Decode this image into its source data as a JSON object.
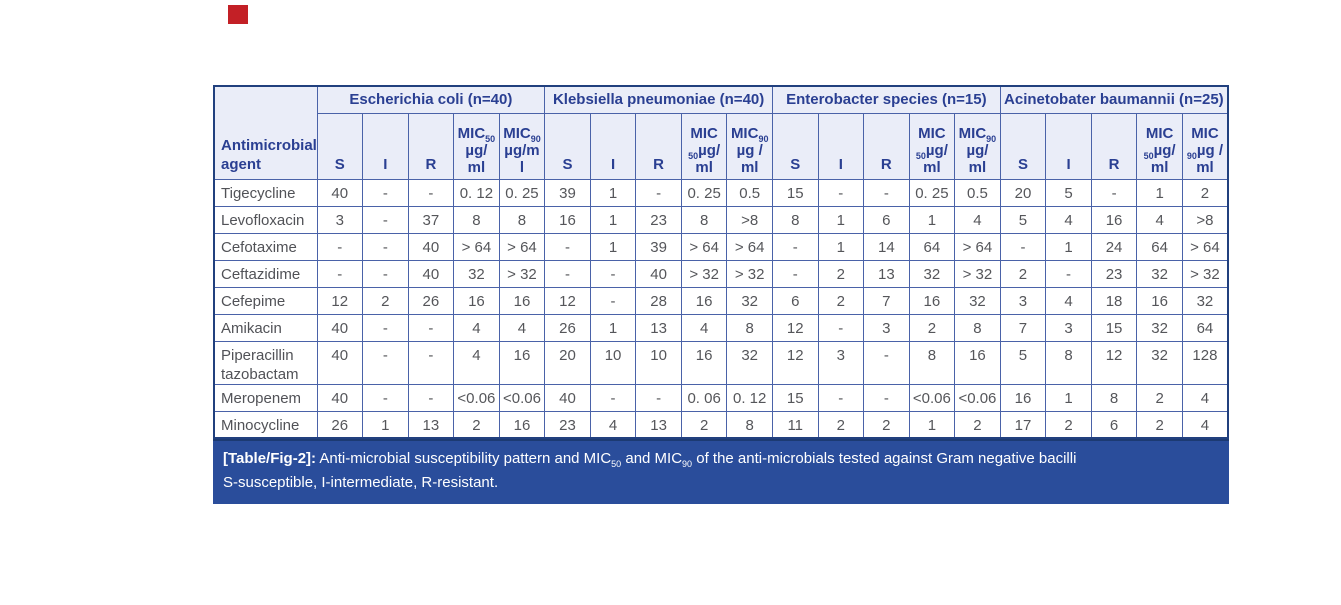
{
  "colors": {
    "red_marker": "#c32026",
    "caption_bg": "#2a4d9b",
    "header_bg": "#eaedf8",
    "header_text": "#2a3f92",
    "grid_line": "#4a62a8",
    "outer_border": "#21407e",
    "data_text": "#55565a",
    "caption_text": "#ffffff"
  },
  "table": {
    "agent_header": "Antimicrobial agent",
    "groups": [
      {
        "label": "Escherichia coli (n=40)",
        "columns": [
          {
            "type": "plain",
            "label": "S"
          },
          {
            "type": "plain",
            "label": "I"
          },
          {
            "type": "plain",
            "label": "R"
          },
          {
            "type": "mic",
            "lines": [
              [
                {
                  "t": "MIC"
                },
                {
                  "sub": "50"
                }
              ],
              [
                {
                  "t": "µg/"
                }
              ],
              [
                {
                  "t": "ml"
                }
              ]
            ]
          },
          {
            "type": "mic",
            "lines": [
              [
                {
                  "t": "MIC"
                },
                {
                  "sub": "90"
                }
              ],
              [
                {
                  "t": "µg/m"
                }
              ],
              [
                {
                  "t": "l"
                }
              ]
            ]
          }
        ]
      },
      {
        "label": "Klebsiella pneumoniae (n=40)",
        "columns": [
          {
            "type": "plain",
            "label": "S"
          },
          {
            "type": "plain",
            "label": "I"
          },
          {
            "type": "plain",
            "label": "R"
          },
          {
            "type": "mic",
            "lines": [
              [
                {
                  "t": "MIC"
                }
              ],
              [
                {
                  "sub": "50"
                },
                {
                  "t": "µg/"
                }
              ],
              [
                {
                  "t": "ml"
                }
              ]
            ]
          },
          {
            "type": "mic",
            "lines": [
              [
                {
                  "t": "MIC"
                },
                {
                  "sub": "90"
                }
              ],
              [
                {
                  "t": "µg /"
                }
              ],
              [
                {
                  "t": "ml"
                }
              ]
            ]
          }
        ]
      },
      {
        "label": "Enterobacter species (n=15)",
        "columns": [
          {
            "type": "plain",
            "label": "S"
          },
          {
            "type": "plain",
            "label": "I"
          },
          {
            "type": "plain",
            "label": "R"
          },
          {
            "type": "mic",
            "lines": [
              [
                {
                  "t": "MIC"
                }
              ],
              [
                {
                  "sub": "50"
                },
                {
                  "t": "µg/"
                }
              ],
              [
                {
                  "t": "ml"
                }
              ]
            ]
          },
          {
            "type": "mic",
            "lines": [
              [
                {
                  "t": "MIC"
                },
                {
                  "sub": "90"
                }
              ],
              [
                {
                  "t": "µg/"
                }
              ],
              [
                {
                  "t": "ml"
                }
              ]
            ]
          }
        ]
      },
      {
        "label": "Acinetobater baumannii (n=25)",
        "columns": [
          {
            "type": "plain",
            "label": "S"
          },
          {
            "type": "plain",
            "label": "I"
          },
          {
            "type": "plain",
            "label": "R"
          },
          {
            "type": "mic",
            "lines": [
              [
                {
                  "t": "MIC"
                }
              ],
              [
                {
                  "sub": "50"
                },
                {
                  "t": "µg/"
                }
              ],
              [
                {
                  "t": "ml"
                }
              ]
            ]
          },
          {
            "type": "mic",
            "lines": [
              [
                {
                  "t": "MIC"
                }
              ],
              [
                {
                  "sub": "90"
                },
                {
                  "t": "µg /"
                }
              ],
              [
                {
                  "t": "ml"
                }
              ]
            ]
          }
        ]
      }
    ],
    "rows": [
      {
        "agent": "Tigecycline",
        "values": [
          "40",
          "-",
          "-",
          "0. 12",
          "0. 25",
          "39",
          "1",
          "-",
          "0. 25",
          "0.5",
          "15",
          "-",
          "-",
          "0. 25",
          "0.5",
          "20",
          "5",
          "-",
          "1",
          "2"
        ]
      },
      {
        "agent": "Levofloxacin",
        "values": [
          "3",
          "-",
          "37",
          "8",
          "8",
          "16",
          "1",
          "23",
          "8",
          ">8",
          "8",
          "1",
          "6",
          "1",
          "4",
          "5",
          "4",
          "16",
          "4",
          ">8"
        ]
      },
      {
        "agent": "Cefotaxime",
        "values": [
          "-",
          "-",
          "40",
          "> 64",
          "> 64",
          "-",
          "1",
          "39",
          "> 64",
          "> 64",
          "-",
          "1",
          "14",
          "64",
          "> 64",
          "-",
          "1",
          "24",
          "64",
          "> 64"
        ]
      },
      {
        "agent": "Ceftazidime",
        "values": [
          "-",
          "-",
          "40",
          "32",
          "> 32",
          "-",
          "-",
          "40",
          "> 32",
          "> 32",
          "-",
          "2",
          "13",
          "32",
          "> 32",
          "2",
          "-",
          "23",
          "32",
          "> 32"
        ]
      },
      {
        "agent": "Cefepime",
        "values": [
          "12",
          "2",
          "26",
          "16",
          "16",
          "12",
          "-",
          "28",
          "16",
          "32",
          "6",
          "2",
          "7",
          "16",
          "32",
          "3",
          "4",
          "18",
          "16",
          "32"
        ]
      },
      {
        "agent": "Amikacin",
        "values": [
          "40",
          "-",
          "-",
          "4",
          "4",
          "26",
          "1",
          "13",
          "4",
          "8",
          "12",
          "-",
          "3",
          "2",
          "8",
          "7",
          "3",
          "15",
          "32",
          "64"
        ]
      },
      {
        "agent": "Piperacillin tazobactam",
        "values": [
          "40",
          "-",
          "-",
          "4",
          "16",
          "20",
          "10",
          "10",
          "16",
          "32",
          "12",
          "3",
          "-",
          "8",
          "16",
          "5",
          "8",
          "12",
          "32",
          "128"
        ]
      },
      {
        "agent": "Meropenem",
        "values": [
          "40",
          "-",
          "-",
          "<0.06",
          "<0.06",
          "40",
          "-",
          "-",
          "0. 06",
          "0. 12",
          "15",
          "-",
          "-",
          "<0.06",
          "<0.06",
          "16",
          "1",
          "8",
          "2",
          "4"
        ]
      },
      {
        "agent": "Minocycline",
        "values": [
          "26",
          "1",
          "13",
          "2",
          "16",
          "23",
          "4",
          "13",
          "2",
          "8",
          "11",
          "2",
          "2",
          "1",
          "2",
          "17",
          "2",
          "6",
          "2",
          "4"
        ]
      }
    ],
    "caption": {
      "prefix": "[Table/Fig-2]:",
      "line1_runs": [
        {
          "t": " Anti-microbial susceptibility pattern and MIC"
        },
        {
          "sub": "50"
        },
        {
          "t": " and MIC"
        },
        {
          "sub": "90"
        },
        {
          "t": " of the anti-microbials tested against Gram negative bacilli"
        }
      ],
      "line2": "S-susceptible, I-intermediate, R-resistant."
    }
  }
}
